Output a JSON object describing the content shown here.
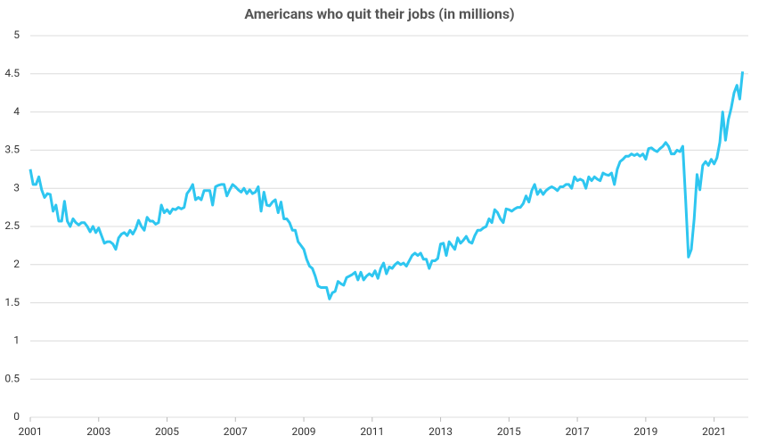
{
  "chart_data": {
    "type": "line",
    "title": "Americans who quit their jobs (in millions)",
    "color": "#2ec6f0",
    "grid": true,
    "xlim": [
      2001,
      2022
    ],
    "xticks": [
      2001,
      2003,
      2005,
      2007,
      2009,
      2011,
      2013,
      2015,
      2017,
      2019,
      2021
    ],
    "ylim": [
      0,
      5
    ],
    "yticks": [
      0,
      0.5,
      1,
      1.5,
      2,
      2.5,
      3,
      3.5,
      4,
      4.5,
      5
    ],
    "x": [
      2001,
      2001.083,
      2001.167,
      2001.25,
      2001.333,
      2001.417,
      2001.5,
      2001.583,
      2001.667,
      2001.75,
      2001.833,
      2001.917,
      2002,
      2002.083,
      2002.167,
      2002.25,
      2002.333,
      2002.417,
      2002.5,
      2002.583,
      2002.667,
      2002.75,
      2002.833,
      2002.917,
      2003,
      2003.083,
      2003.167,
      2003.25,
      2003.333,
      2003.417,
      2003.5,
      2003.583,
      2003.667,
      2003.75,
      2003.833,
      2003.917,
      2004,
      2004.083,
      2004.167,
      2004.25,
      2004.333,
      2004.417,
      2004.5,
      2004.583,
      2004.667,
      2004.75,
      2004.833,
      2004.917,
      2005,
      2005.083,
      2005.167,
      2005.25,
      2005.333,
      2005.417,
      2005.5,
      2005.583,
      2005.667,
      2005.75,
      2005.833,
      2005.917,
      2006,
      2006.083,
      2006.167,
      2006.25,
      2006.333,
      2006.417,
      2006.5,
      2006.583,
      2006.667,
      2006.75,
      2006.833,
      2006.917,
      2007,
      2007.083,
      2007.167,
      2007.25,
      2007.333,
      2007.417,
      2007.5,
      2007.583,
      2007.667,
      2007.75,
      2007.833,
      2007.917,
      2008,
      2008.083,
      2008.167,
      2008.25,
      2008.333,
      2008.417,
      2008.5,
      2008.583,
      2008.667,
      2008.75,
      2008.833,
      2008.917,
      2009,
      2009.083,
      2009.167,
      2009.25,
      2009.333,
      2009.417,
      2009.5,
      2009.583,
      2009.667,
      2009.75,
      2009.833,
      2009.917,
      2010,
      2010.083,
      2010.167,
      2010.25,
      2010.333,
      2010.417,
      2010.5,
      2010.583,
      2010.667,
      2010.75,
      2010.833,
      2010.917,
      2011,
      2011.083,
      2011.167,
      2011.25,
      2011.333,
      2011.417,
      2011.5,
      2011.583,
      2011.667,
      2011.75,
      2011.833,
      2011.917,
      2012,
      2012.083,
      2012.167,
      2012.25,
      2012.333,
      2012.417,
      2012.5,
      2012.583,
      2012.667,
      2012.75,
      2012.833,
      2012.917,
      2013,
      2013.083,
      2013.167,
      2013.25,
      2013.333,
      2013.417,
      2013.5,
      2013.583,
      2013.667,
      2013.75,
      2013.833,
      2013.917,
      2014,
      2014.083,
      2014.167,
      2014.25,
      2014.333,
      2014.417,
      2014.5,
      2014.583,
      2014.667,
      2014.75,
      2014.833,
      2014.917,
      2015,
      2015.083,
      2015.167,
      2015.25,
      2015.333,
      2015.417,
      2015.5,
      2015.583,
      2015.667,
      2015.75,
      2015.833,
      2015.917,
      2016,
      2016.083,
      2016.167,
      2016.25,
      2016.333,
      2016.417,
      2016.5,
      2016.583,
      2016.667,
      2016.75,
      2016.833,
      2016.917,
      2017,
      2017.083,
      2017.167,
      2017.25,
      2017.333,
      2017.417,
      2017.5,
      2017.583,
      2017.667,
      2017.75,
      2017.833,
      2017.917,
      2018,
      2018.083,
      2018.167,
      2018.25,
      2018.333,
      2018.417,
      2018.5,
      2018.583,
      2018.667,
      2018.75,
      2018.833,
      2018.917,
      2019,
      2019.083,
      2019.167,
      2019.25,
      2019.333,
      2019.417,
      2019.5,
      2019.583,
      2019.667,
      2019.75,
      2019.833,
      2019.917,
      2020,
      2020.083,
      2020.167,
      2020.25,
      2020.333,
      2020.417,
      2020.5,
      2020.583,
      2020.667,
      2020.75,
      2020.833,
      2020.917,
      2021,
      2021.083,
      2021.167,
      2021.25,
      2021.333,
      2021.417,
      2021.5,
      2021.583,
      2021.667,
      2021.75,
      2021.833
    ],
    "values": [
      3.25,
      3.05,
      3.05,
      3.15,
      2.98,
      2.88,
      2.93,
      2.92,
      2.7,
      2.78,
      2.57,
      2.57,
      2.83,
      2.57,
      2.5,
      2.6,
      2.55,
      2.52,
      2.55,
      2.55,
      2.5,
      2.43,
      2.5,
      2.42,
      2.48,
      2.38,
      2.28,
      2.3,
      2.3,
      2.27,
      2.2,
      2.35,
      2.4,
      2.42,
      2.38,
      2.45,
      2.4,
      2.47,
      2.58,
      2.5,
      2.45,
      2.62,
      2.57,
      2.57,
      2.53,
      2.55,
      2.78,
      2.68,
      2.72,
      2.67,
      2.73,
      2.72,
      2.75,
      2.73,
      2.75,
      2.93,
      2.98,
      3.05,
      2.85,
      2.88,
      2.85,
      2.97,
      2.97,
      2.97,
      2.78,
      3.02,
      3.04,
      3.05,
      3.05,
      2.9,
      2.98,
      3.05,
      3.02,
      2.98,
      2.95,
      3.0,
      2.93,
      2.98,
      2.93,
      2.95,
      3.02,
      2.7,
      2.95,
      2.78,
      2.77,
      2.82,
      2.85,
      2.68,
      2.82,
      2.6,
      2.6,
      2.55,
      2.45,
      2.45,
      2.3,
      2.25,
      2.2,
      2.07,
      1.98,
      1.95,
      1.85,
      1.72,
      1.7,
      1.7,
      1.7,
      1.55,
      1.63,
      1.65,
      1.78,
      1.75,
      1.73,
      1.83,
      1.85,
      1.87,
      1.9,
      1.8,
      1.9,
      1.8,
      1.85,
      1.88,
      1.85,
      1.92,
      1.82,
      1.95,
      2.02,
      1.88,
      1.97,
      1.95,
      2.0,
      2.03,
      2.0,
      2.02,
      1.98,
      2.05,
      2.12,
      2.15,
      2.12,
      2.15,
      2.07,
      2.07,
      1.95,
      2.05,
      2.05,
      2.08,
      2.27,
      2.28,
      2.12,
      2.3,
      2.25,
      2.2,
      2.35,
      2.28,
      2.32,
      2.37,
      2.3,
      2.28,
      2.38,
      2.45,
      2.45,
      2.48,
      2.5,
      2.6,
      2.55,
      2.72,
      2.68,
      2.6,
      2.55,
      2.73,
      2.72,
      2.7,
      2.73,
      2.75,
      2.75,
      2.8,
      2.9,
      2.82,
      2.97,
      3.05,
      2.92,
      2.98,
      2.92,
      2.97,
      3.0,
      3.02,
      3.0,
      2.97,
      3.02,
      3.02,
      3.05,
      3.05,
      3.0,
      3.15,
      3.1,
      3.12,
      3.1,
      3.0,
      3.15,
      3.1,
      3.15,
      3.12,
      3.1,
      3.2,
      3.18,
      3.17,
      3.2,
      3.05,
      3.25,
      3.35,
      3.38,
      3.42,
      3.42,
      3.45,
      3.43,
      3.45,
      3.42,
      3.45,
      3.38,
      3.52,
      3.53,
      3.5,
      3.48,
      3.52,
      3.55,
      3.6,
      3.55,
      3.45,
      3.45,
      3.5,
      3.48,
      3.55,
      2.85,
      2.1,
      2.2,
      2.6,
      3.18,
      2.98,
      3.3,
      3.35,
      3.3,
      3.38,
      3.32,
      3.4,
      3.6,
      4.0,
      3.63,
      3.9,
      4.05,
      4.25,
      4.35,
      4.17,
      4.53
    ]
  }
}
